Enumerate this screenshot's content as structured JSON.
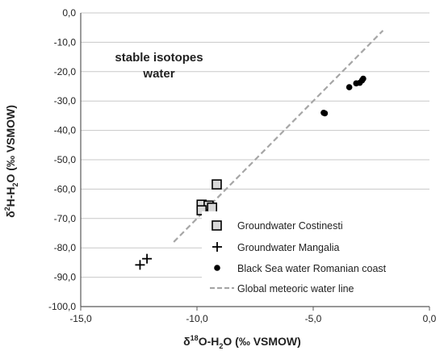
{
  "chart_data": {
    "type": "scatter",
    "title": "",
    "annotation_lines": [
      "stable isotopes",
      "water"
    ],
    "xlabel": {
      "delta": "δ",
      "sup": "18",
      "rest": "O-H",
      "sub": "2",
      "tail": "O (‰ VSMOW)"
    },
    "ylabel": {
      "delta": "δ",
      "sup": "2",
      "rest": "H-H",
      "sub": "2",
      "tail": "O (‰ VSMOW)"
    },
    "xlim": [
      -15,
      0
    ],
    "ylim": [
      -100,
      0
    ],
    "xticks": [
      -15,
      -10,
      -5,
      0
    ],
    "xtick_labels": [
      "-15,0",
      "-10,0",
      "-5,0",
      "0,0"
    ],
    "yticks": [
      0,
      -10,
      -20,
      -30,
      -40,
      -50,
      -60,
      -70,
      -80,
      -90,
      -100
    ],
    "ytick_labels": [
      "0,0",
      "-10,0",
      "-20,0",
      "-30,0",
      "-40,0",
      "-50,0",
      "-60,0",
      "-70,0",
      "-80,0",
      "-90,0",
      "-100,0"
    ],
    "grid": "horizontal",
    "legend_position": "bottom-right",
    "series": [
      {
        "name": "Groundwater Costinesti",
        "marker": "square",
        "points": [
          {
            "x": -9.15,
            "y": -58.4
          },
          {
            "x": -9.8,
            "y": -65.3
          },
          {
            "x": -9.5,
            "y": -65.6
          },
          {
            "x": -9.35,
            "y": -66.3
          },
          {
            "x": -9.8,
            "y": -67.2
          }
        ]
      },
      {
        "name": "Groundwater Mangalia",
        "marker": "plus",
        "points": [
          {
            "x": -12.45,
            "y": -85.8
          },
          {
            "x": -12.15,
            "y": -83.7
          }
        ]
      },
      {
        "name": "Black Sea water Romanian coast",
        "marker": "dot",
        "points": [
          {
            "x": -4.55,
            "y": -34.0
          },
          {
            "x": -4.5,
            "y": -34.2
          },
          {
            "x": -3.45,
            "y": -25.3
          },
          {
            "x": -3.15,
            "y": -24.0
          },
          {
            "x": -3.0,
            "y": -23.8
          },
          {
            "x": -2.9,
            "y": -23.0
          },
          {
            "x": -2.85,
            "y": -22.4
          }
        ]
      },
      {
        "name": "Global meteoric water line",
        "marker": "dashed-line",
        "points": [
          {
            "x": -11.0,
            "y": -78.0
          },
          {
            "x": -2.0,
            "y": -6.0
          }
        ]
      }
    ]
  },
  "colors": {
    "axis": "#595959",
    "grid": "#c8c8c8",
    "points": "#000000",
    "square_fill": "#d9d9d9",
    "gmwl": "#a6a6a6"
  }
}
